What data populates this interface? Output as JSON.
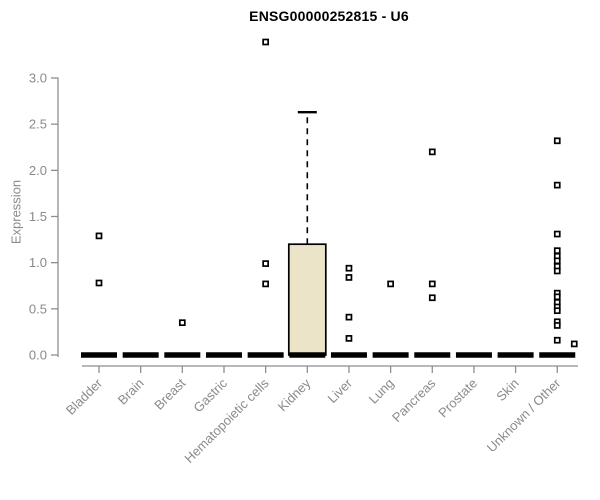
{
  "chart_data": {
    "type": "boxplot",
    "title": "ENSG00000252815 - U6",
    "ylabel": "Expression",
    "xlabel": "",
    "ylim": [
      0.0,
      3.0
    ],
    "yticks": [
      0.0,
      0.5,
      1.0,
      1.5,
      2.0,
      2.5,
      3.0
    ],
    "grid": "off",
    "legend": "none",
    "categories": [
      "Bladder",
      "Brain",
      "Breast",
      "Gastric",
      "Hematopoietic cells",
      "Kidney",
      "Liver",
      "Lung",
      "Pancreas",
      "Prostate",
      "Skin",
      "Unknown / Other"
    ],
    "boxes": [
      {
        "category": "Bladder",
        "q1": 0,
        "median": 0,
        "q3": 0,
        "whisker_low": 0,
        "whisker_high": 0
      },
      {
        "category": "Brain",
        "q1": 0,
        "median": 0,
        "q3": 0,
        "whisker_low": 0,
        "whisker_high": 0
      },
      {
        "category": "Breast",
        "q1": 0,
        "median": 0,
        "q3": 0,
        "whisker_low": 0,
        "whisker_high": 0
      },
      {
        "category": "Gastric",
        "q1": 0,
        "median": 0,
        "q3": 0,
        "whisker_low": 0,
        "whisker_high": 0
      },
      {
        "category": "Hematopoietic cells",
        "q1": 0,
        "median": 0,
        "q3": 0,
        "whisker_low": 0,
        "whisker_high": 0
      },
      {
        "category": "Kidney",
        "q1": 0,
        "median": 0,
        "q3": 1.2,
        "whisker_low": 0,
        "whisker_high": 2.63
      },
      {
        "category": "Liver",
        "q1": 0,
        "median": 0,
        "q3": 0,
        "whisker_low": 0,
        "whisker_high": 0
      },
      {
        "category": "Lung",
        "q1": 0,
        "median": 0,
        "q3": 0,
        "whisker_low": 0,
        "whisker_high": 0
      },
      {
        "category": "Pancreas",
        "q1": 0,
        "median": 0,
        "q3": 0,
        "whisker_low": 0,
        "whisker_high": 0
      },
      {
        "category": "Prostate",
        "q1": 0,
        "median": 0,
        "q3": 0,
        "whisker_low": 0,
        "whisker_high": 0
      },
      {
        "category": "Skin",
        "q1": 0,
        "median": 0,
        "q3": 0,
        "whisker_low": 0,
        "whisker_high": 0
      },
      {
        "category": "Unknown / Other",
        "q1": 0,
        "median": 0,
        "q3": 0,
        "whisker_low": 0,
        "whisker_high": 0
      }
    ],
    "outlier_points": [
      {
        "category": "Bladder",
        "value": 1.29
      },
      {
        "category": "Bladder",
        "value": 0.78
      },
      {
        "category": "Breast",
        "value": 0.35
      },
      {
        "category": "Hematopoietic cells",
        "value": 3.39
      },
      {
        "category": "Hematopoietic cells",
        "value": 0.99
      },
      {
        "category": "Hematopoietic cells",
        "value": 0.77
      },
      {
        "category": "Liver",
        "value": 0.94
      },
      {
        "category": "Liver",
        "value": 0.84
      },
      {
        "category": "Liver",
        "value": 0.41
      },
      {
        "category": "Liver",
        "value": 0.18
      },
      {
        "category": "Lung",
        "value": 0.77
      },
      {
        "category": "Pancreas",
        "value": 2.2
      },
      {
        "category": "Pancreas",
        "value": 0.77
      },
      {
        "category": "Pancreas",
        "value": 0.62
      },
      {
        "category": "Unknown / Other",
        "value": 2.32
      },
      {
        "category": "Unknown / Other",
        "value": 1.84
      },
      {
        "category": "Unknown / Other",
        "value": 1.31
      },
      {
        "category": "Unknown / Other",
        "value": 1.13
      },
      {
        "category": "Unknown / Other",
        "value": 1.07
      },
      {
        "category": "Unknown / Other",
        "value": 1.02
      },
      {
        "category": "Unknown / Other",
        "value": 0.96
      },
      {
        "category": "Unknown / Other",
        "value": 0.91
      },
      {
        "category": "Unknown / Other",
        "value": 0.67
      },
      {
        "category": "Unknown / Other",
        "value": 0.63
      },
      {
        "category": "Unknown / Other",
        "value": 0.57
      },
      {
        "category": "Unknown / Other",
        "value": 0.52
      },
      {
        "category": "Unknown / Other",
        "value": 0.48
      },
      {
        "category": "Unknown / Other",
        "value": 0.36
      },
      {
        "category": "Unknown / Other",
        "value": 0.32
      },
      {
        "category": "Unknown / Other",
        "value": 0.16
      },
      {
        "category": "Unknown / Other",
        "value": 0.12,
        "dx": 17
      }
    ],
    "colors": {
      "box_fill": "#ebe4c8",
      "box_stroke": "#000000",
      "zero_bar": "#000000",
      "axis": "#8e8e8e",
      "tick_label": "#8a8a8a",
      "title": "#000000",
      "point_stroke": "#000000",
      "point_fill": "#ffffff",
      "background": "#ffffff"
    }
  }
}
